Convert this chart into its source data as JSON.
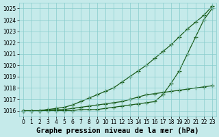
{
  "xlabel": "Graphe pression niveau de la mer (hPa)",
  "background_color": "#c5eaea",
  "plot_bg_color": "#c5eaea",
  "grid_color": "#88cccc",
  "line_color": "#1a5c1a",
  "x": [
    0,
    1,
    2,
    3,
    4,
    5,
    6,
    7,
    8,
    9,
    10,
    11,
    12,
    13,
    14,
    15,
    16,
    17,
    18,
    19,
    20,
    21,
    22,
    23
  ],
  "line1": [
    1016.0,
    1016.0,
    1016.0,
    1016.1,
    1016.2,
    1016.3,
    1016.5,
    1016.8,
    1017.1,
    1017.4,
    1017.7,
    1018.0,
    1018.5,
    1019.0,
    1019.5,
    1020.0,
    1020.6,
    1021.2,
    1021.8,
    1022.5,
    1023.2,
    1023.8,
    1024.4,
    1025.2
  ],
  "line2": [
    1016.0,
    1016.0,
    1016.0,
    1016.1,
    1016.1,
    1016.1,
    1016.2,
    1016.3,
    1016.4,
    1016.5,
    1016.6,
    1016.7,
    1016.8,
    1017.0,
    1017.2,
    1017.4,
    1017.5,
    1017.6,
    1017.7,
    1017.8,
    1017.9,
    1018.0,
    1018.1,
    1018.2
  ],
  "line3": [
    1016.0,
    1016.0,
    1016.0,
    1016.0,
    1016.0,
    1016.0,
    1016.0,
    1016.1,
    1016.1,
    1016.1,
    1016.2,
    1016.3,
    1016.4,
    1016.5,
    1016.6,
    1016.7,
    1016.8,
    1017.4,
    1018.4,
    1019.5,
    1021.0,
    1022.5,
    1024.0,
    1025.0
  ],
  "ylim": [
    1015.5,
    1025.5
  ],
  "yticks": [
    1016,
    1017,
    1018,
    1019,
    1020,
    1021,
    1022,
    1023,
    1024,
    1025
  ],
  "xticks": [
    0,
    1,
    2,
    3,
    4,
    5,
    6,
    7,
    8,
    9,
    10,
    11,
    12,
    13,
    14,
    15,
    16,
    17,
    18,
    19,
    20,
    21,
    22,
    23
  ],
  "marker": "+",
  "markersize": 4,
  "linewidth": 0.9,
  "xlabel_fontsize": 7.5,
  "tick_fontsize": 5.5
}
